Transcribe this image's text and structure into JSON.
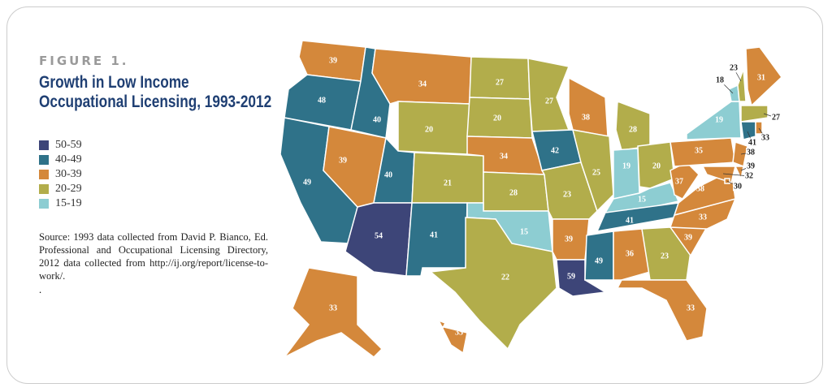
{
  "figure_label": "FIGURE 1.",
  "title": "Growth in Low Income Occupational Licensing, 1993-2012",
  "legend": [
    {
      "label": "50-59",
      "color": "#3d4578"
    },
    {
      "label": "40-49",
      "color": "#2f7289"
    },
    {
      "label": "30-39",
      "color": "#d4883b"
    },
    {
      "label": "20-29",
      "color": "#b2ad4b"
    },
    {
      "label": "15-19",
      "color": "#8dcdd2"
    }
  ],
  "source": "Source: 1993 data collected from David P. Bianco, Ed. Professional and Occupational Licensing Directory, 2012 data collected from http://ij.org/report/license-to-work/.",
  "note": ".",
  "map": {
    "states": [
      {
        "value": 39
      },
      {
        "value": 48
      },
      {
        "value": 49
      },
      {
        "value": 40
      },
      {
        "value": 39
      },
      {
        "value": 34
      },
      {
        "value": 20
      },
      {
        "value": 40
      },
      {
        "value": 54
      },
      {
        "value": 21
      },
      {
        "value": 41
      },
      {
        "value": 27
      },
      {
        "value": 20
      },
      {
        "value": 34
      },
      {
        "value": 28
      },
      {
        "value": 15
      },
      {
        "value": 22
      },
      {
        "value": 27
      },
      {
        "value": 42
      },
      {
        "value": 23
      },
      {
        "value": 39
      },
      {
        "value": 59
      },
      {
        "value": 38
      },
      {
        "value": 25
      },
      {
        "value": 28
      },
      {
        "value": 19
      },
      {
        "value": 20
      },
      {
        "value": 15
      },
      {
        "value": 41
      },
      {
        "value": 49
      },
      {
        "value": 36
      },
      {
        "value": 23
      },
      {
        "value": 33
      },
      {
        "value": 39
      },
      {
        "value": 33
      },
      {
        "value": 38
      },
      {
        "value": 37
      },
      {
        "value": 35
      },
      {
        "value": 19
      },
      {
        "value": 31
      },
      {
        "value": 18
      },
      {
        "value": 23
      },
      {
        "value": 27
      },
      {
        "value": 41
      },
      {
        "value": 33
      },
      {
        "value": 38
      },
      {
        "value": 39
      },
      {
        "value": 32
      },
      {
        "value": 30
      },
      {
        "value": 33
      },
      {
        "value": 33
      }
    ]
  }
}
